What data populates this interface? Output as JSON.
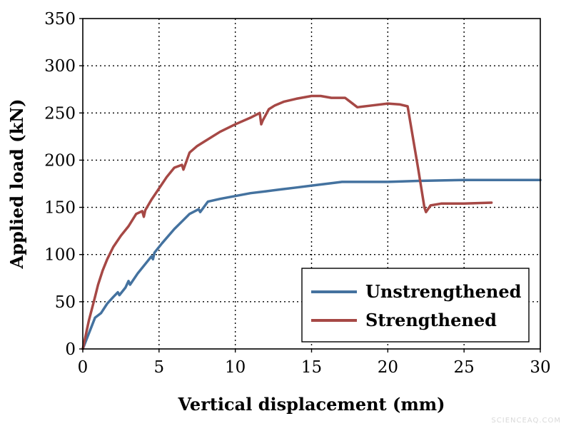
{
  "chart_data": {
    "type": "line",
    "xlabel": "Vertical displacement (mm)",
    "ylabel": "Applied load (kN)",
    "xlim": [
      0,
      30
    ],
    "ylim": [
      0,
      350
    ],
    "xticks": [
      0,
      5,
      10,
      15,
      20,
      25,
      30
    ],
    "yticks": [
      0,
      50,
      100,
      150,
      200,
      250,
      300,
      350
    ],
    "grid": true,
    "legend_position": "bottom-right",
    "series": [
      {
        "name": "Unstrengthened",
        "color": "#44729f",
        "x": [
          0,
          0.8,
          1.2,
          1.6,
          2.0,
          2.3,
          2.4,
          2.8,
          3.0,
          3.1,
          3.6,
          4.2,
          4.5,
          4.6,
          4.7,
          5.2,
          6.0,
          7.0,
          7.6,
          7.7,
          8.2,
          9.0,
          10.0,
          11.0,
          12.0,
          13.0,
          14.0,
          15.0,
          16.0,
          17.0,
          18.0,
          20.0,
          22.0,
          25.0,
          27.0,
          30.0
        ],
        "y": [
          0,
          33,
          38,
          48,
          55,
          60,
          57,
          65,
          72,
          68,
          80,
          92,
          98,
          95,
          102,
          112,
          127,
          143,
          148,
          145,
          156,
          159,
          162,
          165,
          167,
          169,
          171,
          173,
          175,
          177,
          177,
          177,
          178,
          179,
          179,
          179
        ]
      },
      {
        "name": "Strengthened",
        "color": "#a64845",
        "x": [
          0,
          0.4,
          0.8,
          1.0,
          1.3,
          1.6,
          2.0,
          2.5,
          3.0,
          3.5,
          3.9,
          4.0,
          4.1,
          4.5,
          5.0,
          5.5,
          6.0,
          6.5,
          6.6,
          7.0,
          7.5,
          8.0,
          9.0,
          10.0,
          11.0,
          11.6,
          11.7,
          11.8,
          12.2,
          12.6,
          13.2,
          14.0,
          15.0,
          15.6,
          16.3,
          17.2,
          17.6,
          18.0,
          19.0,
          20.0,
          20.8,
          21.3,
          22.0,
          22.4,
          22.5,
          22.8,
          23.5,
          25.0,
          26.8
        ],
        "y": [
          0,
          30,
          55,
          68,
          83,
          95,
          108,
          120,
          130,
          143,
          146,
          140,
          147,
          158,
          170,
          182,
          192,
          195,
          190,
          208,
          215,
          220,
          230,
          238,
          245,
          250,
          238,
          242,
          254,
          258,
          262,
          265,
          268,
          268,
          266,
          266,
          261,
          256,
          258,
          260,
          259,
          257,
          190,
          150,
          145,
          152,
          154,
          154,
          155
        ]
      }
    ]
  },
  "watermark": "SCIENCEAQ.COM"
}
